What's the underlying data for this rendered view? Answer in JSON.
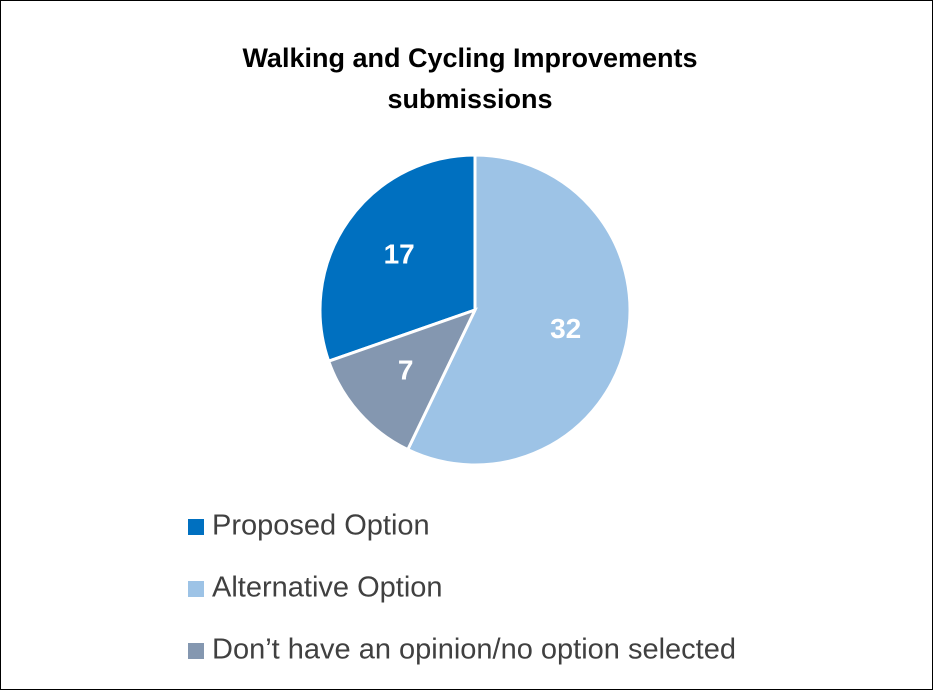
{
  "chart_data": {
    "type": "pie",
    "title": "Walking and Cycling Improvements submissions",
    "categories": [
      "Proposed Option",
      "Alternative Option",
      "Don’t have an opinion/no option selected"
    ],
    "values": [
      17,
      32,
      7
    ],
    "colors": [
      "#0070c0",
      "#9dc3e6",
      "#8497b0"
    ],
    "legend": "bottom"
  }
}
